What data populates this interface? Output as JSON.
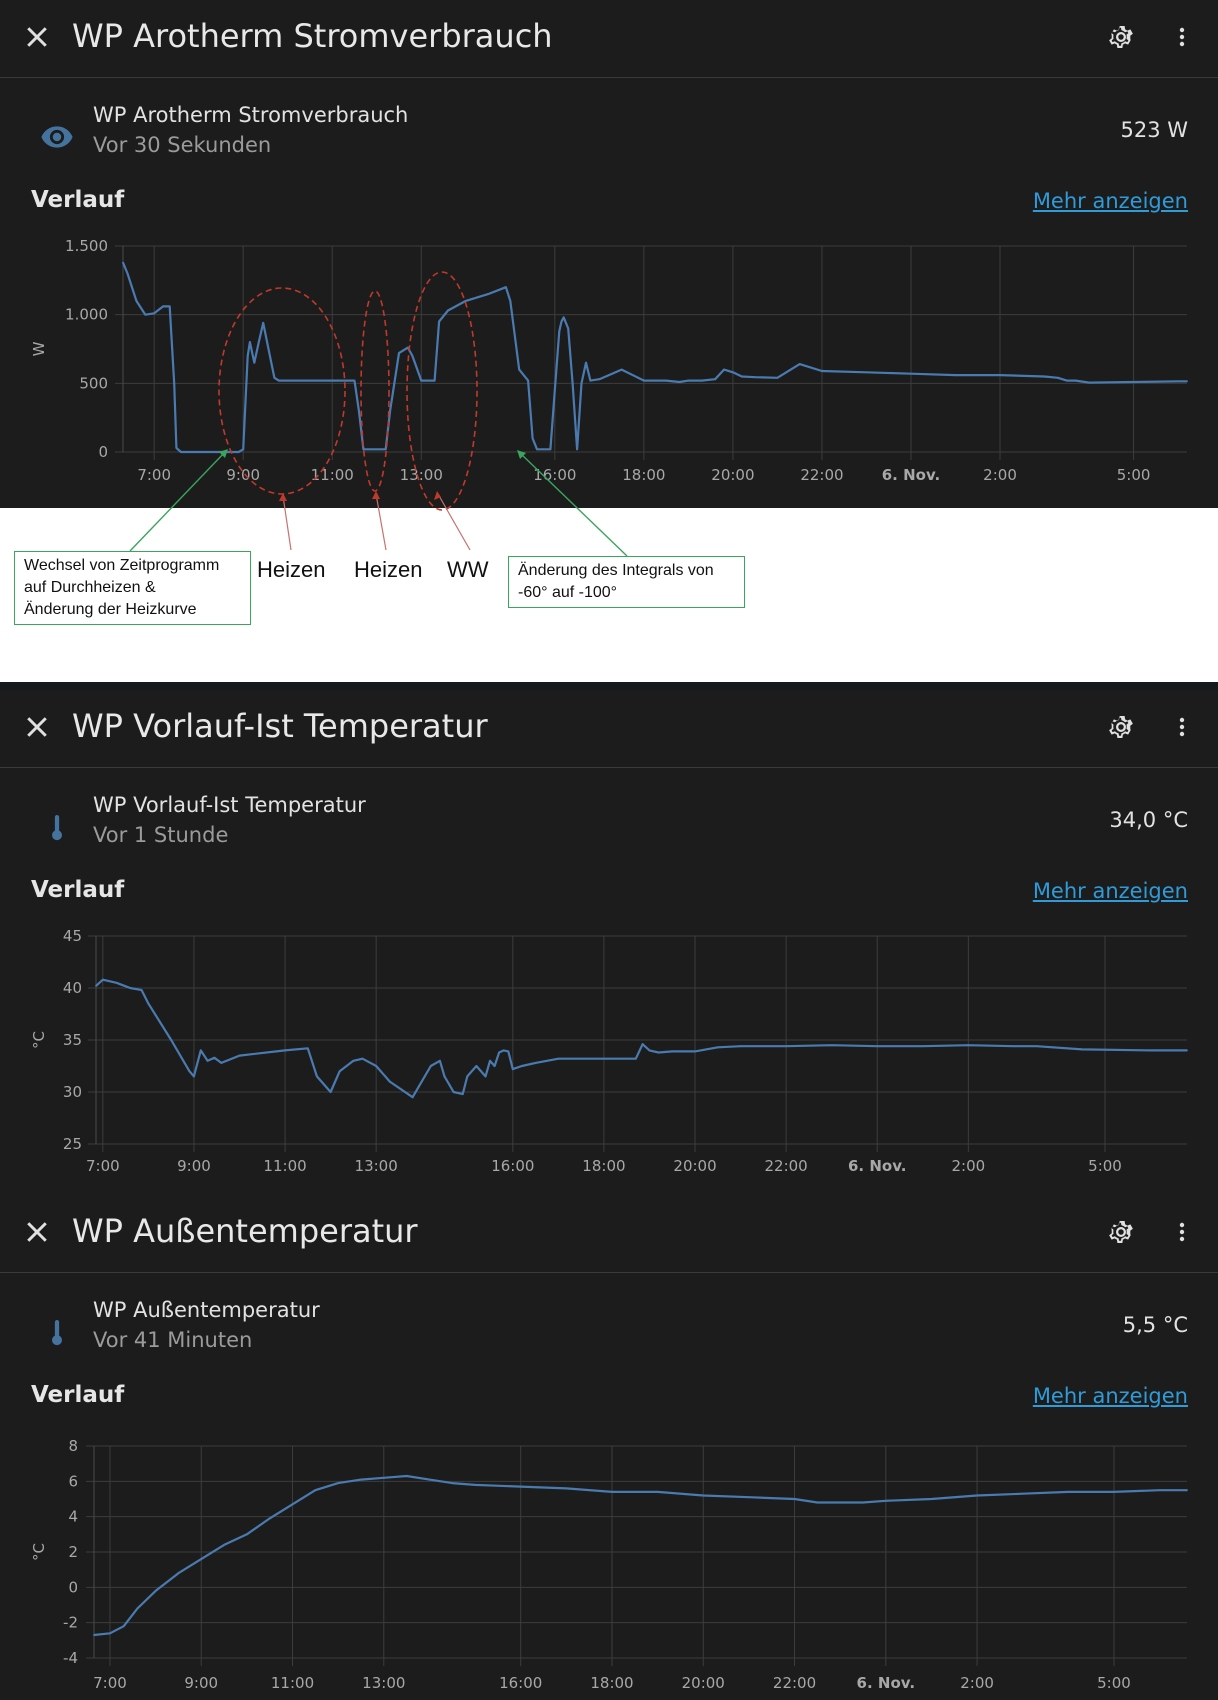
{
  "panels": [
    {
      "title": "WP Arotherm Stromverbrauch",
      "entity_name": "WP Arotherm Stromverbrauch",
      "entity_sub": "Vor 30 Sekunden",
      "entity_value": "523 W",
      "icon": "eye-icon",
      "section_label": "Verlauf",
      "more_link": "Mehr anzeigen"
    },
    {
      "title": "WP Vorlauf-Ist Temperatur",
      "entity_name": "WP Vorlauf-Ist Temperatur",
      "entity_sub": "Vor 1 Stunde",
      "entity_value": "34,0 °C",
      "icon": "thermometer-icon",
      "section_label": "Verlauf",
      "more_link": "Mehr anzeigen"
    },
    {
      "title": "WP Außentemperatur",
      "entity_name": "WP Außentemperatur",
      "entity_sub": "Vor 41 Minuten",
      "entity_value": "5,5 °C",
      "icon": "thermometer-icon",
      "section_label": "Verlauf",
      "more_link": "Mehr anzeigen"
    }
  ],
  "annotations": {
    "box1": [
      "Wechsel von Zeitprogramm",
      "auf Durchheizen &",
      "Änderung der Heizkurve"
    ],
    "label_heizen1": "Heizen",
    "label_heizen2": "Heizen",
    "label_ww": "WW",
    "box2": [
      "Änderung des Integrals von",
      "-60° auf -100°"
    ]
  },
  "colors": {
    "line": "#4a7bb0",
    "link": "#2f9bd8",
    "background": "#1c1c1c",
    "annotation_green": "#3aa55d",
    "annotation_red": "#c0392b"
  },
  "chart_data": [
    {
      "type": "line",
      "ylabel": "W",
      "ylim": [
        0,
        1500
      ],
      "y_ticks": [
        0,
        500,
        1000,
        1500
      ],
      "y_tick_labels": [
        "0",
        "500",
        "1.000",
        "1.500"
      ],
      "xlim": [
        6.3,
        30.2
      ],
      "x_ticks": [
        7,
        9,
        11,
        13,
        16,
        18,
        20,
        22,
        24,
        26,
        29
      ],
      "x_tick_labels": [
        "7:00",
        "9:00",
        "11:00",
        "13:00",
        "16:00",
        "18:00",
        "20:00",
        "22:00",
        "6. Nov.",
        "2:00",
        "5:00"
      ],
      "x_tick_bold": [
        false,
        false,
        false,
        false,
        false,
        false,
        false,
        false,
        true,
        false,
        false
      ],
      "x": [
        6.3,
        6.4,
        6.6,
        6.8,
        7.0,
        7.2,
        7.35,
        7.45,
        7.5,
        7.6,
        8.0,
        8.5,
        8.9,
        9.0,
        9.1,
        9.15,
        9.25,
        9.35,
        9.45,
        9.6,
        9.7,
        9.8,
        9.95,
        10.0,
        10.5,
        11.0,
        11.5,
        11.6,
        11.7,
        12.0,
        12.1,
        12.2,
        12.3,
        12.5,
        12.7,
        12.8,
        13.0,
        13.1,
        13.2,
        13.3,
        13.4,
        13.6,
        14.0,
        14.5,
        14.9,
        15.0,
        15.2,
        15.4,
        15.5,
        15.6,
        15.75,
        15.9,
        16.0,
        16.1,
        16.15,
        16.2,
        16.3,
        16.4,
        16.5,
        16.6,
        16.7,
        16.8,
        17.0,
        17.5,
        18.0,
        18.5,
        18.8,
        19.0,
        19.3,
        19.6,
        19.8,
        20.0,
        20.2,
        20.5,
        21.0,
        21.5,
        22.0,
        23.0,
        24.0,
        25.0,
        26.0,
        27.0,
        27.3,
        27.5,
        27.7,
        28.0,
        29.0,
        30.0,
        30.2
      ],
      "values": [
        1380,
        1300,
        1100,
        1000,
        1010,
        1060,
        1060,
        500,
        30,
        0,
        0,
        0,
        0,
        20,
        700,
        800,
        650,
        800,
        940,
        700,
        540,
        520,
        520,
        520,
        520,
        520,
        520,
        300,
        20,
        20,
        20,
        20,
        300,
        720,
        760,
        700,
        520,
        520,
        520,
        520,
        950,
        1030,
        1100,
        1150,
        1200,
        1100,
        600,
        520,
        100,
        20,
        20,
        20,
        450,
        880,
        950,
        980,
        900,
        500,
        20,
        500,
        650,
        520,
        530,
        600,
        520,
        520,
        510,
        520,
        520,
        530,
        600,
        580,
        550,
        545,
        540,
        640,
        590,
        580,
        570,
        560,
        560,
        550,
        540,
        520,
        520,
        505,
        510,
        515,
        515
      ]
    },
    {
      "type": "line",
      "ylabel": "°C",
      "ylim": [
        25,
        45
      ],
      "y_ticks": [
        25,
        30,
        35,
        40,
        45
      ],
      "y_tick_labels": [
        "25",
        "30",
        "35",
        "40",
        "45"
      ],
      "xlim": [
        6.85,
        30.8
      ],
      "x_ticks": [
        7,
        9,
        11,
        13,
        16,
        18,
        20,
        22,
        24,
        26,
        29
      ],
      "x_tick_labels": [
        "7:00",
        "9:00",
        "11:00",
        "13:00",
        "16:00",
        "18:00",
        "20:00",
        "22:00",
        "6. Nov.",
        "2:00",
        "5:00"
      ],
      "x_tick_bold": [
        false,
        false,
        false,
        false,
        false,
        false,
        false,
        false,
        true,
        false,
        false
      ],
      "x": [
        6.85,
        7.0,
        7.3,
        7.6,
        7.85,
        8.0,
        8.5,
        8.9,
        9.0,
        9.15,
        9.3,
        9.45,
        9.6,
        10.0,
        11.0,
        11.5,
        11.7,
        12.0,
        12.2,
        12.5,
        12.7,
        13.0,
        13.3,
        13.8,
        14.2,
        14.4,
        14.5,
        14.7,
        14.9,
        15.0,
        15.2,
        15.4,
        15.5,
        15.6,
        15.7,
        15.8,
        15.9,
        16.0,
        16.2,
        16.5,
        17.0,
        18.0,
        18.7,
        18.85,
        19.0,
        19.2,
        19.5,
        20.0,
        20.5,
        21.0,
        22.0,
        23.0,
        24.0,
        25.0,
        26.0,
        27.0,
        27.5,
        28.5,
        30.0,
        30.8
      ],
      "values": [
        40.2,
        40.8,
        40.5,
        40.0,
        39.8,
        38.5,
        35.0,
        32.0,
        31.5,
        34.0,
        33.0,
        33.3,
        32.8,
        33.5,
        34.0,
        34.2,
        31.5,
        30.0,
        32.0,
        33.0,
        33.2,
        32.5,
        31.0,
        29.5,
        32.5,
        33.0,
        31.5,
        30.0,
        29.8,
        31.5,
        32.5,
        31.5,
        33.0,
        32.5,
        33.8,
        34.0,
        33.9,
        32.2,
        32.5,
        32.8,
        33.2,
        33.2,
        33.2,
        34.6,
        34.0,
        33.8,
        33.9,
        33.9,
        34.3,
        34.4,
        34.4,
        34.5,
        34.4,
        34.4,
        34.5,
        34.4,
        34.4,
        34.1,
        34.0,
        34.0
      ]
    },
    {
      "type": "line",
      "ylabel": "°C",
      "ylim": [
        -4,
        8
      ],
      "y_ticks": [
        -4,
        -2,
        0,
        2,
        4,
        6,
        8
      ],
      "y_tick_labels": [
        "-4",
        "-2",
        "0",
        "2",
        "4",
        "6",
        "8"
      ],
      "xlim": [
        6.65,
        30.6
      ],
      "x_ticks": [
        7,
        9,
        11,
        13,
        16,
        18,
        20,
        22,
        24,
        26,
        29
      ],
      "x_tick_labels": [
        "7:00",
        "9:00",
        "11:00",
        "13:00",
        "16:00",
        "18:00",
        "20:00",
        "22:00",
        "6. Nov.",
        "2:00",
        "5:00"
      ],
      "x_tick_bold": [
        false,
        false,
        false,
        false,
        false,
        false,
        false,
        false,
        true,
        false,
        false
      ],
      "x": [
        6.65,
        7.0,
        7.3,
        7.6,
        8.0,
        8.5,
        9.0,
        9.5,
        10.0,
        10.5,
        11.0,
        11.5,
        12.0,
        12.5,
        13.0,
        13.5,
        14.0,
        14.5,
        15.0,
        16.0,
        17.0,
        18.0,
        19.0,
        20.0,
        21.0,
        22.0,
        22.5,
        23.0,
        23.5,
        24.0,
        25.0,
        26.0,
        27.0,
        28.0,
        29.0,
        30.0,
        30.6
      ],
      "values": [
        -2.7,
        -2.6,
        -2.2,
        -1.2,
        -0.2,
        0.8,
        1.6,
        2.4,
        3.0,
        3.9,
        4.7,
        5.5,
        5.9,
        6.1,
        6.2,
        6.3,
        6.1,
        5.9,
        5.8,
        5.7,
        5.6,
        5.4,
        5.4,
        5.2,
        5.1,
        5.0,
        4.8,
        4.8,
        4.8,
        4.9,
        5.0,
        5.2,
        5.3,
        5.4,
        5.4,
        5.5,
        5.5
      ]
    }
  ]
}
